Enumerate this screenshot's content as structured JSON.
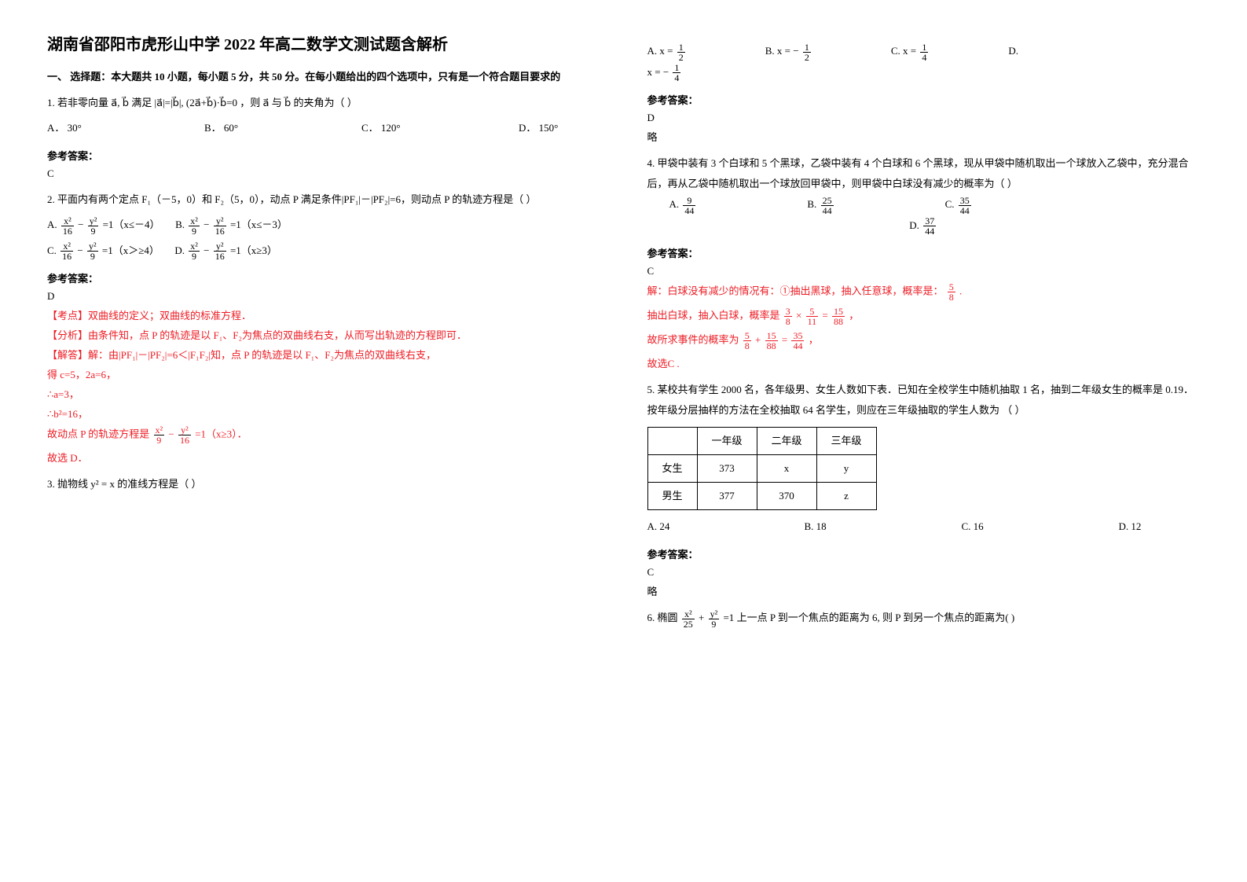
{
  "title": "湖南省邵阳市虎形山中学 2022 年高二数学文测试题含解析",
  "section1": "一、 选择题：本大题共 10 小题，每小题 5 分，共 50 分。在每小题给出的四个选项中，只有是一个符合题目要求的",
  "q1": {
    "stem": "1. 若非零向量 a⃗, b⃗ 满足 |a⃗|=|b⃗|, (2a⃗+b⃗)·b⃗=0 ，则 a⃗ 与 b⃗ 的夹角为（   ）",
    "A": "A．  30°",
    "B": "B．  60°",
    "C": "C．  120°",
    "D": "D．  150°",
    "ansLabel": "参考答案：",
    "ans": "C"
  },
  "q2": {
    "stem": "2. 平面内有两个定点 F₁（－5，0）和 F₂（5，0），动点 P 满足条件|PF₁|－|PF₂|=6，则动点 P 的轨迹方程是（   ）",
    "A_tail": " =1（x≤－4）",
    "B_tail": " =1（x≤－3）",
    "C_tail": " =1（x＞≥4）",
    "D_tail": " =1（x≥3）",
    "ansLabel": "参考答案：",
    "ans": "D",
    "exp1": "【考点】双曲线的定义；双曲线的标准方程．",
    "exp2": "【分析】由条件知，点 P 的轨迹是以 F₁、F₂为焦点的双曲线右支，从而写出轨迹的方程即可．",
    "exp3": "【解答】解：由|PF₁|－|PF₂|=6＜|F₁F₂|知，点 P 的轨迹是以 F₁、F₂为焦点的双曲线右支，",
    "exp4": "得 c=5，2a=6，",
    "exp5": "∴a=3，",
    "exp6": "∴b²=16，",
    "exp7_pre": "故动点 P 的轨迹方程是 ",
    "exp7_tail": " =1（x≥3）．",
    "exp8": "故选 D．"
  },
  "q3": {
    "stem": "3. 抛物线 y² = x 的准线方程是（          ）",
    "A_pre": "A. ",
    "A_eq": "x = ",
    "A_num": "1",
    "A_den": "2",
    "B_pre": "B. ",
    "B_eq": "x = − ",
    "B_num": "1",
    "B_den": "2",
    "C_pre": "C. ",
    "C_eq": "x = ",
    "C_num": "1",
    "C_den": "4",
    "D_pre": "D. ",
    "D_eq": "x = − ",
    "D_num": "1",
    "D_den": "4",
    "ansLabel": "参考答案：",
    "ans": "D",
    "brief": "略"
  },
  "q4": {
    "stem": "4. 甲袋中装有 3 个白球和 5 个黑球，乙袋中装有 4 个白球和 6 个黑球，现从甲袋中随机取出一个球放入乙袋中，充分混合后，再从乙袋中随机取出一个球放回甲袋中，则甲袋中白球没有减少的概率为（        ）",
    "A": "A.",
    "A_num": "9",
    "A_den": "44",
    "B": "B.",
    "B_num": "25",
    "B_den": "44",
    "C": "C.",
    "C_num": "35",
    "C_den": "44",
    "D": "D.",
    "D_num": "37",
    "D_den": "44",
    "ansLabel": "参考答案：",
    "ans": "C",
    "e1_a": "解：白球没有减少的情况有：①抽出黑球，抽入任意球，概率是： ",
    "e1_num": "5",
    "e1_den": "8",
    "e1_b": " .",
    "e2_a": "抽出白球，抽入白球，概率是 ",
    "e2_n1": "3",
    "e2_d1": "8",
    "e2_mid": " × ",
    "e2_n2": "5",
    "e2_d2": "11",
    "e2_eq": " = ",
    "e2_n3": "15",
    "e2_d3": "88",
    "e2_b": " ，",
    "e3_a": "故所求事件的概率为 ",
    "e3_n1": "5",
    "e3_d1": "8",
    "e3_p": " + ",
    "e3_n2": "15",
    "e3_d2": "88",
    "e3_eq": " = ",
    "e3_n3": "35",
    "e3_d3": "44",
    "e3_b": " ，",
    "e4": "故选C ."
  },
  "q5": {
    "stem": "5. 某校共有学生 2000 名，各年级男、女生人数如下表．已知在全校学生中随机抽取 1 名，抽到二年级女生的概率是 0.19．按年级分层抽样的方法在全校抽取 64 名学生，则应在三年级抽取的学生人数为                                                              （     ）",
    "h0": "",
    "h1": "一年级",
    "h2": "二年级",
    "h3": "三年级",
    "r1": "女生",
    "r1a": "373",
    "r1b": "x",
    "r1c": "y",
    "r2": "男生",
    "r2a": "377",
    "r2b": "370",
    "r2c": "z",
    "A": "A.  24",
    "B": "B.  18",
    "C": "C.  16",
    "D": "D.  12",
    "ansLabel": "参考答案：",
    "ans": "C",
    "brief": "略"
  },
  "q6": {
    "pre": "6. 椭圆 ",
    "n1": "x²",
    "d1": "25",
    "plus": " + ",
    "n2": "y²",
    "d2": "9",
    "eq": " =1",
    "tail": "  上一点 P 到一个焦点的距离为 6, 则 P 到另一个焦点的距离为(     )"
  }
}
